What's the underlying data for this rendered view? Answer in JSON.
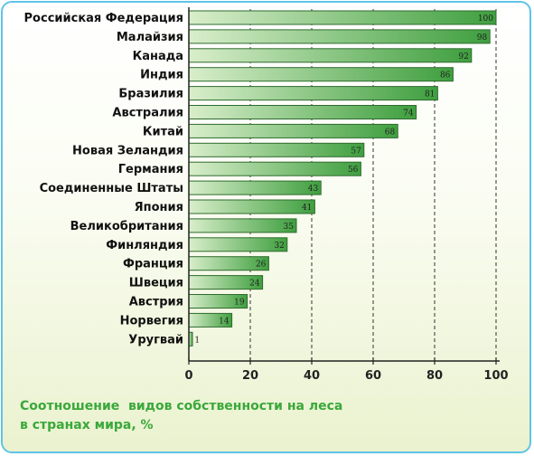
{
  "chart_data": {
    "type": "bar",
    "orientation": "horizontal",
    "categories": [
      "Российская Федерация",
      "Малайзия",
      "Канада",
      "Индия",
      "Бразилия",
      "Австралия",
      "Китай",
      "Новая Зеландия",
      "Германия",
      "Соединенные Штаты",
      "Япония",
      "Великобритания",
      "Финляндия",
      "Франция",
      "Швеция",
      "Австрия",
      "Норвегия",
      "Уругвай"
    ],
    "values": [
      100,
      98,
      92,
      86,
      81,
      74,
      68,
      57,
      56,
      43,
      41,
      35,
      32,
      26,
      24,
      19,
      14,
      1
    ],
    "x_ticks": [
      0,
      20,
      40,
      60,
      80,
      100
    ],
    "xlim": [
      0,
      100
    ],
    "grid": "vertical-dashed",
    "caption": "Соотношение  видов собственности на леса\nв странах мира, %"
  },
  "colors": {
    "bar_light": "#d9eecb",
    "bar_dark": "#3f9f3f",
    "bar_border": "#2e6b2e",
    "caption": "#3aa83a",
    "frame": "#5fc4e6"
  }
}
